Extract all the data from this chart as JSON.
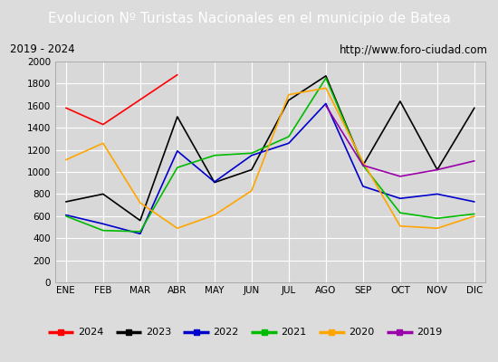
{
  "title": "Evolucion Nº Turistas Nacionales en el municipio de Batea",
  "subtitle_left": "2019 - 2024",
  "subtitle_right": "http://www.foro-ciudad.com",
  "months": [
    "ENE",
    "FEB",
    "MAR",
    "ABR",
    "MAY",
    "JUN",
    "JUL",
    "AGO",
    "SEP",
    "OCT",
    "NOV",
    "DIC"
  ],
  "series": {
    "2024": [
      1580,
      1430,
      null,
      1880,
      null,
      null,
      null,
      null,
      null,
      null,
      null,
      null
    ],
    "2023": [
      730,
      800,
      560,
      1500,
      905,
      1020,
      1650,
      1870,
      1060,
      1640,
      1020,
      1580
    ],
    "2022": [
      610,
      530,
      440,
      1190,
      910,
      1150,
      1260,
      1620,
      870,
      760,
      800,
      730
    ],
    "2021": [
      600,
      470,
      460,
      1040,
      1150,
      1170,
      1320,
      1850,
      1060,
      630,
      580,
      620
    ],
    "2020": [
      1110,
      1260,
      720,
      490,
      610,
      830,
      1700,
      1760,
      1090,
      510,
      490,
      600
    ],
    "2019": [
      null,
      null,
      null,
      null,
      null,
      null,
      null,
      1600,
      1060,
      960,
      1020,
      1100
    ]
  },
  "colors": {
    "2024": "#ff0000",
    "2023": "#000000",
    "2022": "#0000cc",
    "2021": "#00bb00",
    "2020": "#ffa500",
    "2019": "#9900aa"
  },
  "ylim": [
    0,
    2000
  ],
  "yticks": [
    0,
    200,
    400,
    600,
    800,
    1000,
    1200,
    1400,
    1600,
    1800,
    2000
  ],
  "bg_color": "#dcdcdc",
  "plot_bg_color": "#d8d8d8",
  "title_bg_color": "#5588cc",
  "title_fg_color": "#ffffff",
  "subtitle_bg_color": "#f0f0f0",
  "grid_color": "#ffffff",
  "legend_bg_color": "#f0f0f0"
}
